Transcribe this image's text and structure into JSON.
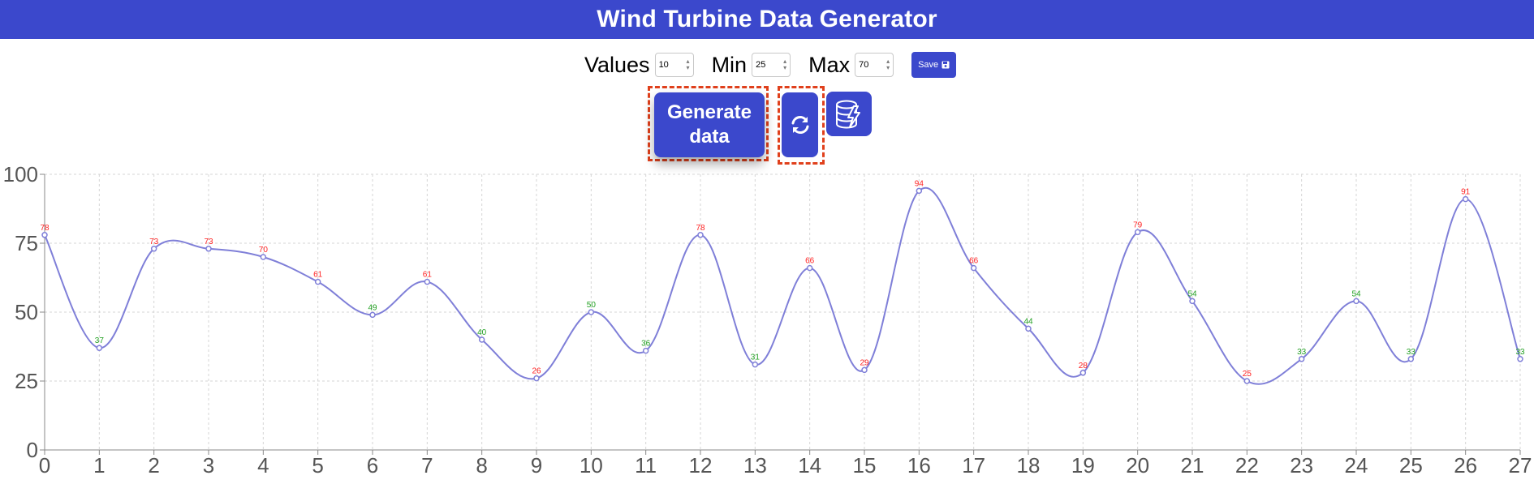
{
  "header": {
    "title": "Wind Turbine Data Generator"
  },
  "controls": {
    "values_label": "Values",
    "values_value": "10",
    "min_label": "Min",
    "min_value": "25",
    "max_label": "Max",
    "max_value": "70",
    "save_label": "Save"
  },
  "actions": {
    "generate_label_line1": "Generate",
    "generate_label_line2": "data",
    "refresh_icon": "refresh-icon",
    "database_icon": "database-bolt-icon"
  },
  "colors": {
    "accent": "#3b48cc",
    "line": "#7f7fd8",
    "label_high": "#ff2222",
    "label_low": "#22a022",
    "highlight_border": "#e0401c"
  },
  "chart_data": {
    "type": "line",
    "x": [
      0,
      1,
      2,
      3,
      4,
      5,
      6,
      7,
      8,
      9,
      10,
      11,
      12,
      13,
      14,
      15,
      16,
      17,
      18,
      19,
      20,
      21,
      22,
      23,
      24,
      25,
      26,
      27
    ],
    "values": [
      78,
      37,
      73,
      73,
      70,
      61,
      49,
      61,
      40,
      26,
      50,
      36,
      78,
      31,
      66,
      29,
      94,
      66,
      44,
      28,
      79,
      54,
      25,
      33,
      54,
      33,
      91,
      33
    ],
    "label_colors": [
      "high",
      "low",
      "high",
      "high",
      "high",
      "high",
      "low",
      "high",
      "low",
      "high",
      "low",
      "low",
      "high",
      "low",
      "high",
      "high",
      "high",
      "high",
      "low",
      "high",
      "high",
      "low",
      "high",
      "low",
      "low",
      "low",
      "high",
      "low"
    ],
    "xlim": [
      0,
      27
    ],
    "ylim": [
      0,
      100
    ],
    "yticks": [
      0,
      25,
      50,
      75,
      100
    ],
    "grid": true,
    "curve": "smooth"
  }
}
